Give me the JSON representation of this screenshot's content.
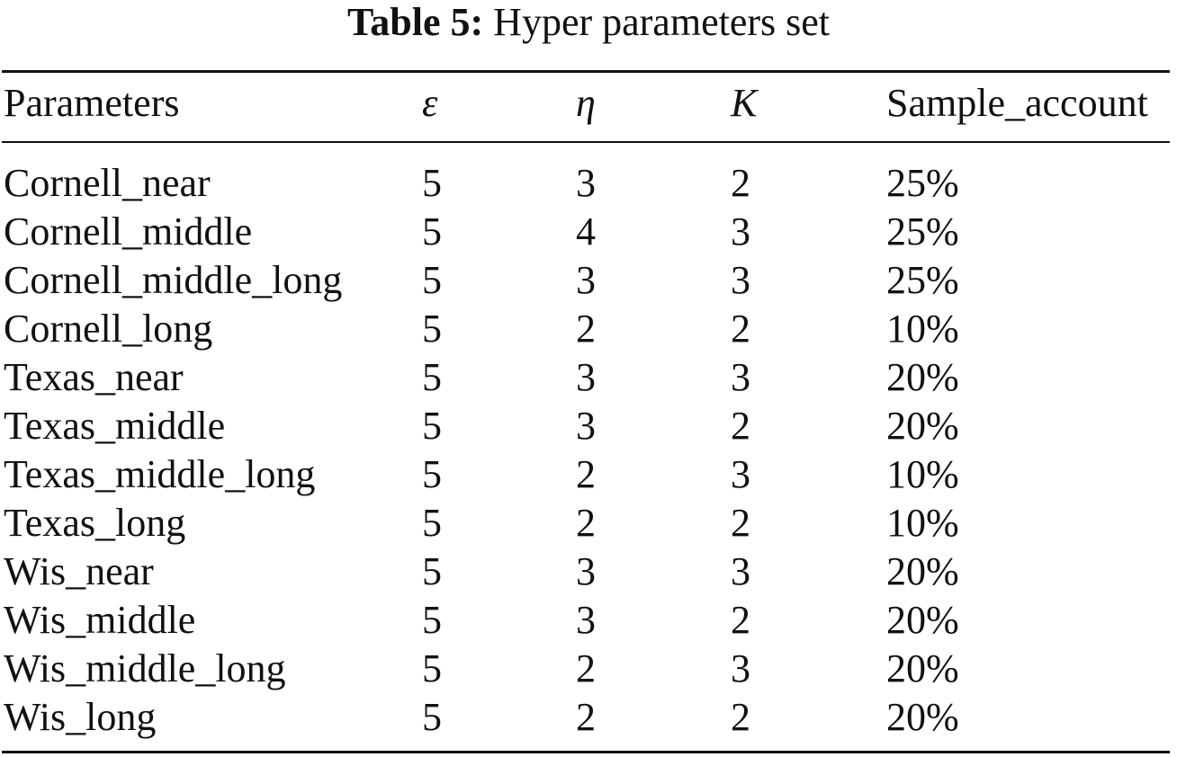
{
  "caption": {
    "label": "Table 5:",
    "text": "Hyper parameters set"
  },
  "table": {
    "headers": [
      "Parameters",
      "ε",
      "η",
      "K",
      "Sample_account"
    ],
    "rows": [
      [
        "Cornell_near",
        "5",
        "3",
        "2",
        "25%"
      ],
      [
        "Cornell_middle",
        "5",
        "4",
        "3",
        "25%"
      ],
      [
        "Cornell_middle_long",
        "5",
        "3",
        "3",
        "25%"
      ],
      [
        "Cornell_long",
        "5",
        "2",
        "2",
        "10%"
      ],
      [
        "Texas_near",
        "5",
        "3",
        "3",
        "20%"
      ],
      [
        "Texas_middle",
        "5",
        "3",
        "2",
        "20%"
      ],
      [
        "Texas_middle_long",
        "5",
        "2",
        "3",
        "10%"
      ],
      [
        "Texas_long",
        "5",
        "2",
        "2",
        "10%"
      ],
      [
        "Wis_near",
        "5",
        "3",
        "3",
        "20%"
      ],
      [
        "Wis_middle",
        "5",
        "3",
        "2",
        "20%"
      ],
      [
        "Wis_middle_long",
        "5",
        "2",
        "3",
        "20%"
      ],
      [
        "Wis_long",
        "5",
        "2",
        "2",
        "20%"
      ]
    ]
  }
}
